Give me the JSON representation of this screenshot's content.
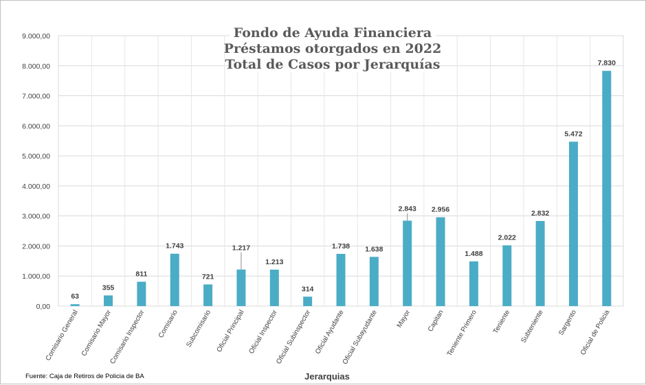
{
  "chart_data": {
    "type": "bar",
    "title_lines": [
      "Fondo de Ayuda Financiera",
      "Préstamos otorgados en 2022",
      "Total de Casos por Jerarquías"
    ],
    "xlabel": "Jerarquias",
    "ylabel": "",
    "source": "Fuente: Caja de Retiros de Policia de BA",
    "ylim": [
      0,
      9000
    ],
    "yticks": [
      0,
      1000,
      2000,
      3000,
      4000,
      5000,
      6000,
      7000,
      8000,
      9000
    ],
    "ytick_labels": [
      "0,00",
      "1.000,00",
      "2.000,00",
      "3.000,00",
      "4.000,00",
      "5.000,00",
      "6.000,00",
      "7.000,00",
      "8.000,00",
      "9.000,00"
    ],
    "grid": true,
    "legend": "none",
    "bar_color": "#4bacc6",
    "categories": [
      "Comisario General",
      "Comisario Mayor",
      "Comisario Inspector",
      "Comisario",
      "Subcomisario",
      "Oficial Principal",
      "Oficial Inspector",
      "Oficial Subinspector",
      "Oficial Ayudante",
      "Oficial Subayudante",
      "Mayor",
      "Capitan",
      "Teniente Primero",
      "Teniente",
      "Subteniente",
      "Sargento",
      "Oficial de Policia"
    ],
    "values": [
      63,
      355,
      811,
      1743,
      721,
      1217,
      1213,
      314,
      1738,
      1638,
      2843,
      2956,
      1488,
      2022,
      2832,
      5472,
      7830
    ],
    "data_labels": [
      "63",
      "355",
      "811",
      "1.743",
      "721",
      "1.217",
      "1.213",
      "314",
      "1.738",
      "1.638",
      "2.843",
      "2.956",
      "1.488",
      "2.022",
      "2.832",
      "5.472",
      "7.830"
    ]
  }
}
